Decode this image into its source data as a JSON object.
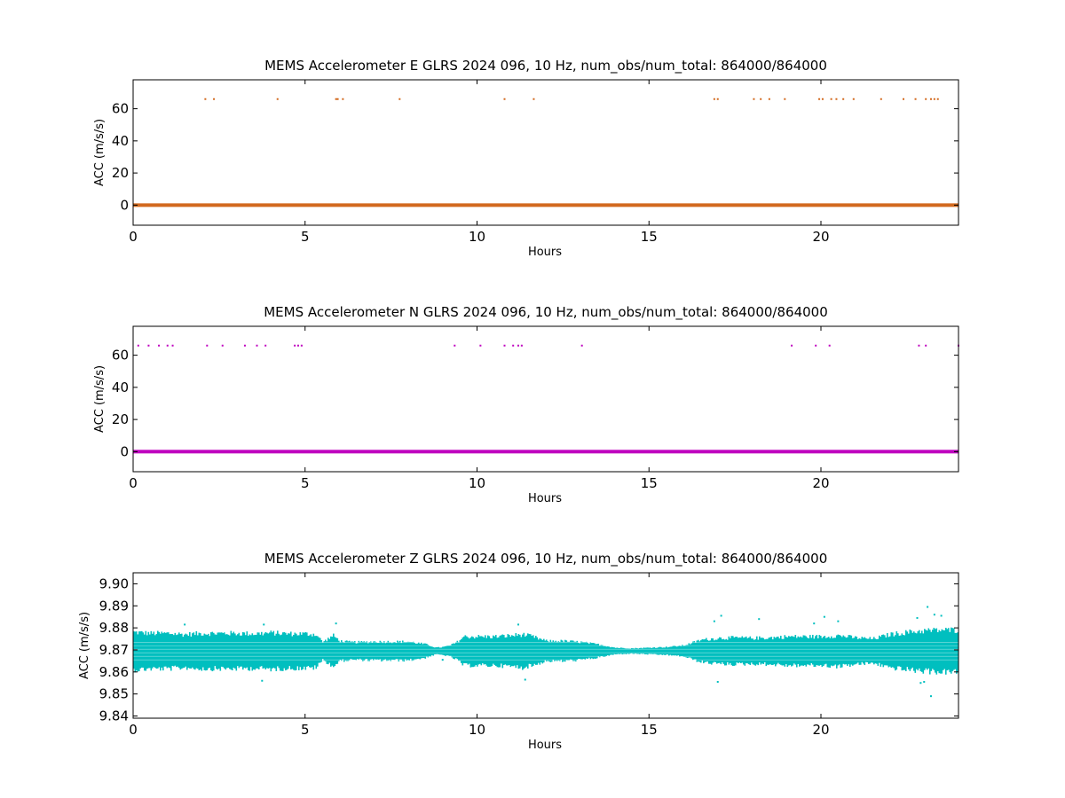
{
  "figure": {
    "background": "#ffffff"
  },
  "chart_data": [
    {
      "type": "scatter",
      "title": "MEMS Accelerometer E GLRS 2024 096, 10 Hz, num_obs/num_total: 864000/864000",
      "xlabel": "Hours",
      "ylabel": "ACC (m/s/s)",
      "xlim": [
        0,
        24
      ],
      "ylim": [
        -12.5,
        78
      ],
      "xticks": [
        0,
        5,
        10,
        15,
        20
      ],
      "xtick_labels": [
        "0",
        "5",
        "10",
        "15",
        "20"
      ],
      "yticks": [
        0,
        20,
        40,
        60
      ],
      "ytick_labels": [
        "0",
        "20",
        "40",
        "60"
      ],
      "grid": false,
      "color": "#d2691e",
      "series": [
        {
          "baseline": {
            "x_range": [
              0,
              24
            ],
            "y": 0
          },
          "outliers": {
            "x": [
              2.1,
              2.35,
              4.2,
              5.9,
              5.95,
              6.1,
              7.75,
              10.8,
              11.65,
              16.9,
              17.0,
              18.05,
              18.25,
              18.5,
              18.95,
              19.95,
              20.05,
              20.3,
              20.45,
              20.65,
              20.95,
              21.75,
              22.4,
              22.75,
              23.05,
              23.2,
              23.3,
              23.4
            ],
            "y": 66
          }
        }
      ]
    },
    {
      "type": "scatter",
      "title": "MEMS Accelerometer N GLRS 2024 096, 10 Hz, num_obs/num_total: 864000/864000",
      "xlabel": "Hours",
      "ylabel": "ACC (m/s/s)",
      "xlim": [
        0,
        24
      ],
      "ylim": [
        -12.5,
        78
      ],
      "xticks": [
        0,
        5,
        10,
        15,
        20
      ],
      "xtick_labels": [
        "0",
        "5",
        "10",
        "15",
        "20"
      ],
      "yticks": [
        0,
        20,
        40,
        60
      ],
      "ytick_labels": [
        "0",
        "20",
        "40",
        "60"
      ],
      "grid": false,
      "color": "#bf00bf",
      "series": [
        {
          "baseline": {
            "x_range": [
              0,
              24
            ],
            "y": 0
          },
          "outliers": {
            "x": [
              0.15,
              0.45,
              0.75,
              1.0,
              1.15,
              2.15,
              2.6,
              3.25,
              3.6,
              3.85,
              4.7,
              4.8,
              4.9,
              9.35,
              10.1,
              10.8,
              11.05,
              11.2,
              11.3,
              13.05,
              19.15,
              19.85,
              20.25,
              22.85,
              23.05,
              24.0
            ],
            "y": 66
          }
        }
      ]
    },
    {
      "type": "scatter",
      "title": "MEMS Accelerometer Z GLRS 2024 096, 10 Hz, num_obs/num_total: 864000/864000",
      "xlabel": "Hours",
      "ylabel": "ACC (m/s/s)",
      "xlim": [
        0,
        24
      ],
      "ylim": [
        9.839,
        9.905
      ],
      "xticks": [
        0,
        5,
        10,
        15,
        20
      ],
      "xtick_labels": [
        "0",
        "5",
        "10",
        "15",
        "20"
      ],
      "yticks": [
        9.84,
        9.85,
        9.86,
        9.87,
        9.88,
        9.89,
        9.9
      ],
      "ytick_labels": [
        "9.84",
        "9.85",
        "9.86",
        "9.87",
        "9.88",
        "9.89",
        "9.90"
      ],
      "grid": false,
      "color": "#00bfbf",
      "series": [
        {
          "center": 9.8695,
          "envelope": {
            "x": [
              0,
              0.5,
              1.0,
              1.5,
              2.0,
              2.5,
              3.0,
              3.5,
              4.0,
              4.5,
              5.0,
              5.3,
              5.5,
              5.8,
              6.0,
              6.3,
              6.6,
              7.0,
              7.5,
              8.0,
              8.5,
              8.8,
              9.0,
              9.2,
              9.4,
              9.6,
              10.0,
              10.5,
              11.0,
              11.3,
              11.6,
              12.0,
              12.5,
              13.0,
              13.5,
              14.0,
              14.5,
              15.0,
              15.5,
              16.0,
              16.5,
              17.0,
              17.5,
              18.0,
              18.5,
              19.0,
              19.5,
              20.0,
              20.5,
              21.0,
              21.5,
              22.0,
              22.5,
              23.0,
              23.5,
              24.0
            ],
            "half_width": [
              0.0085,
              0.008,
              0.008,
              0.0075,
              0.008,
              0.008,
              0.008,
              0.0078,
              0.0082,
              0.0078,
              0.0078,
              0.0075,
              0.004,
              0.007,
              0.0045,
              0.004,
              0.004,
              0.0042,
              0.0042,
              0.0042,
              0.003,
              0.0015,
              0.0018,
              0.0025,
              0.004,
              0.0065,
              0.0065,
              0.0065,
              0.007,
              0.0075,
              0.0065,
              0.0045,
              0.0045,
              0.004,
              0.003,
              0.0015,
              0.0012,
              0.0015,
              0.0018,
              0.0025,
              0.005,
              0.0058,
              0.006,
              0.0058,
              0.006,
              0.0065,
              0.0065,
              0.0065,
              0.007,
              0.006,
              0.0055,
              0.0075,
              0.0085,
              0.0092,
              0.0095,
              0.0095
            ]
          },
          "outliers": {
            "x": [
              1.5,
              3.8,
              3.75,
              5.9,
              9.0,
              11.2,
              11.4,
              17.1,
              16.9,
              18.2,
              19.8,
              20.1,
              20.5,
              22.8,
              23.1,
              23.3,
              23.5,
              22.9,
              23.0,
              17.0,
              23.2
            ],
            "y": [
              9.8815,
              9.8815,
              9.856,
              9.882,
              9.8655,
              9.8815,
              9.8565,
              9.8855,
              9.883,
              9.884,
              9.882,
              9.885,
              9.883,
              9.8845,
              9.8895,
              9.886,
              9.8855,
              9.855,
              9.8555,
              9.8555,
              9.849
            ]
          }
        }
      ]
    }
  ]
}
